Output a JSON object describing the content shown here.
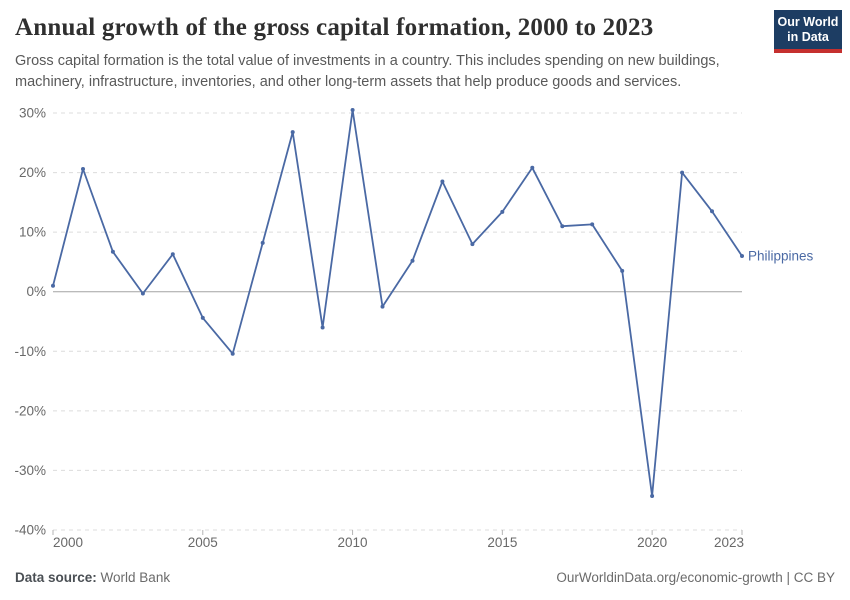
{
  "header": {
    "title": "Annual growth of the gross capital formation, 2000 to 2023",
    "subtitle_line1": "Gross capital formation is the total value of investments in a country. This includes spending on new buildings,",
    "subtitle_line2": "machinery, infrastructure, inventories, and other long-term assets that help produce goods and services.",
    "logo_line1": "Our World",
    "logo_line2": "in Data"
  },
  "chart_data": {
    "type": "line",
    "title": "Annual growth of the gross capital formation, 2000 to 2023",
    "xlabel": "",
    "ylabel": "",
    "xlim": [
      2000,
      2023
    ],
    "ylim": [
      -40,
      30
    ],
    "yticks": [
      30,
      20,
      10,
      0,
      -10,
      -20,
      -30,
      -40
    ],
    "ytick_suffix": "%",
    "xticks": [
      2000,
      2005,
      2010,
      2015,
      2020,
      2023
    ],
    "grid": "horizontal-dashed",
    "zero_line": true,
    "legend_position": "end-of-line",
    "line_color": "#4a69a4",
    "grid_color": "#dcdcdc",
    "zero_line_color": "#a3a3a3",
    "tick_color": "#b5b5b5",
    "axis_text_color": "#696969",
    "series": [
      {
        "name": "Philippines",
        "x": [
          2000,
          2001,
          2002,
          2003,
          2004,
          2005,
          2006,
          2007,
          2008,
          2009,
          2010,
          2011,
          2012,
          2013,
          2014,
          2015,
          2016,
          2017,
          2018,
          2019,
          2020,
          2021,
          2022,
          2023
        ],
        "values": [
          1.0,
          20.6,
          6.7,
          -0.3,
          6.3,
          -4.4,
          -10.4,
          8.2,
          26.8,
          -6.0,
          30.5,
          -2.5,
          5.2,
          18.5,
          8.0,
          13.4,
          20.8,
          11.0,
          11.3,
          3.5,
          -34.3,
          20.0,
          13.5,
          6.0
        ]
      }
    ]
  },
  "footer": {
    "source_label": "Data source:",
    "source_value": "World Bank",
    "right_text": "OurWorldinData.org/economic-growth | CC BY"
  }
}
